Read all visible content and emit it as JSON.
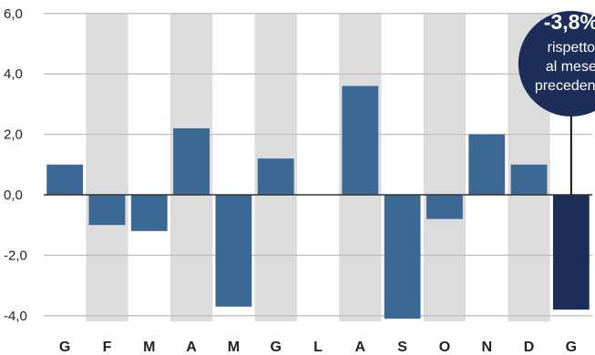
{
  "chart_data": {
    "type": "bar",
    "categories": [
      "G",
      "F",
      "M",
      "A",
      "M",
      "G",
      "L",
      "A",
      "S",
      "O",
      "N",
      "D",
      "G"
    ],
    "values": [
      1.0,
      -1.0,
      -1.2,
      2.2,
      -3.7,
      1.2,
      0.0,
      3.6,
      -4.1,
      -0.8,
      2.0,
      1.0,
      -3.8
    ],
    "yticks": [
      "6,0",
      "4,0",
      "2,0",
      "0,0",
      "-2,0",
      "-4,0"
    ],
    "ylim": [
      -4.2,
      6.0
    ],
    "grid": true,
    "shaded_categories": [
      1,
      3,
      5,
      7,
      9,
      11
    ],
    "highlight_index": 12,
    "annotation": {
      "value": "-3,8%",
      "line1": "rispetto",
      "line2": "al mese",
      "line3": "precedente"
    },
    "colors": {
      "bar": "#3c6894",
      "highlight": "#1c2d58",
      "band": "#dcdcdc",
      "grid": "#bfbfbf",
      "axis": "#333333"
    }
  }
}
